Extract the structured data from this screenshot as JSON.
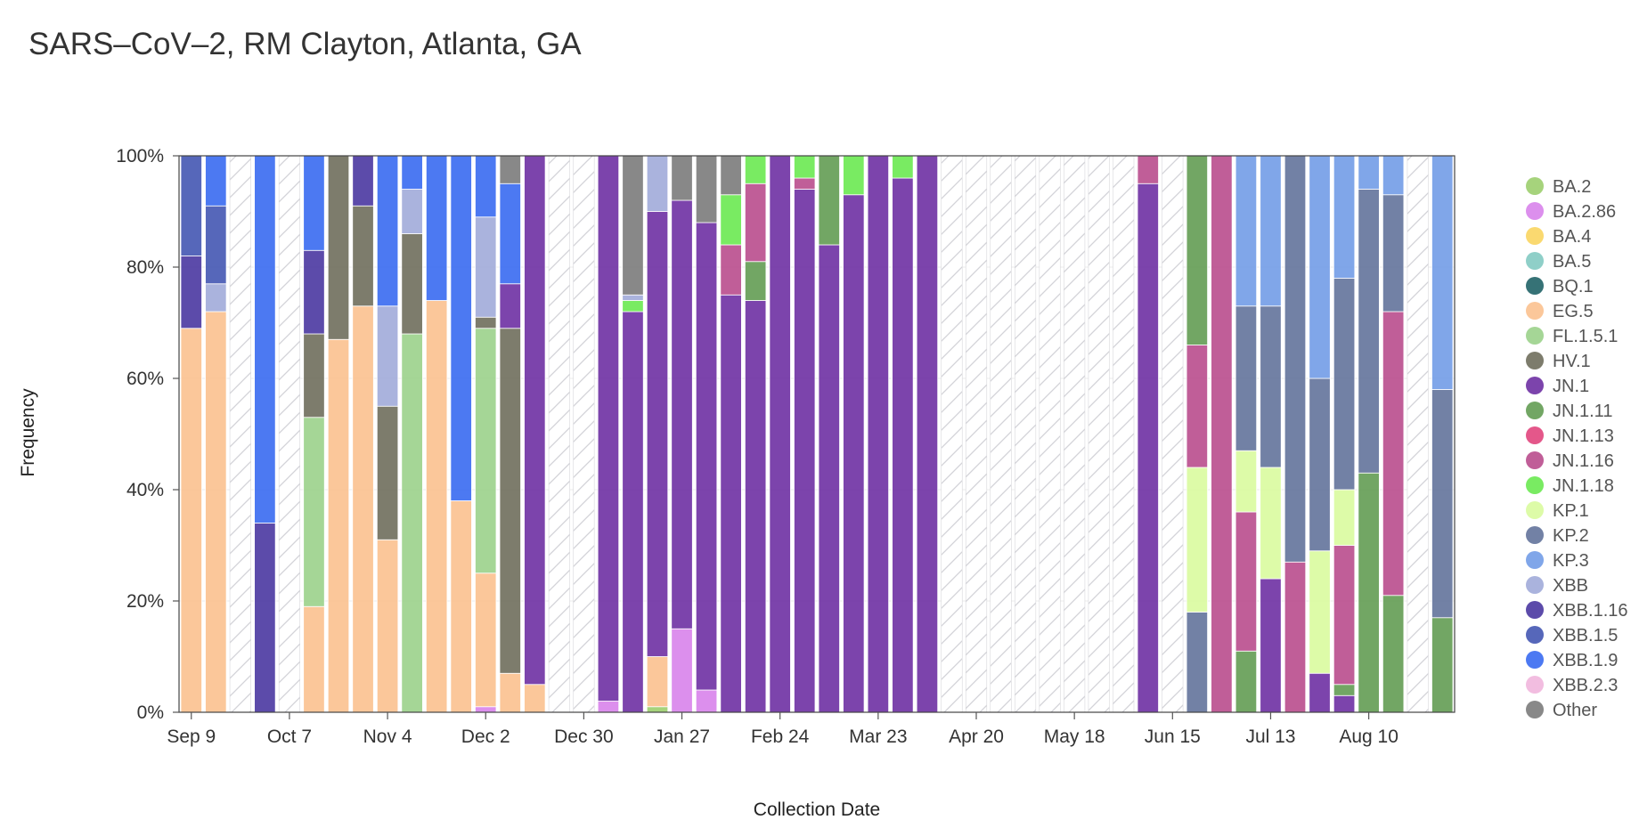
{
  "chart_data": {
    "type": "bar",
    "stacked": true,
    "title": "SARS–CoV–2, RM Clayton, Atlanta, GA",
    "xlabel": "Collection Date",
    "ylabel": "Frequency",
    "ylim": [
      0,
      100
    ],
    "y_ticks": [
      "0%",
      "20%",
      "40%",
      "60%",
      "80%",
      "100%"
    ],
    "x_tick_labels": [
      {
        "label": "Sep 9",
        "week": 0
      },
      {
        "label": "Oct 7",
        "week": 4
      },
      {
        "label": "Nov 4",
        "week": 8
      },
      {
        "label": "Dec 2",
        "week": 12
      },
      {
        "label": "Dec 30",
        "week": 16
      },
      {
        "label": "Jan 27",
        "week": 20
      },
      {
        "label": "Feb 24",
        "week": 24
      },
      {
        "label": "Mar 23",
        "week": 28
      },
      {
        "label": "Apr 20",
        "week": 32
      },
      {
        "label": "May 18",
        "week": 36
      },
      {
        "label": "Jun 15",
        "week": 40
      },
      {
        "label": "Jul 13",
        "week": 44
      },
      {
        "label": "Aug 10",
        "week": 48
      }
    ],
    "no_data_fill": "hatched",
    "legend_position": "right",
    "variants": [
      {
        "name": "BA.2",
        "color": "#9acd6a"
      },
      {
        "name": "BA.2.86",
        "color": "#d77fea"
      },
      {
        "name": "BA.4",
        "color": "#f9d45c"
      },
      {
        "name": "BA.5",
        "color": "#7fc8c0"
      },
      {
        "name": "BQ.1",
        "color": "#1a5e63"
      },
      {
        "name": "EG.5",
        "color": "#fbbf8c"
      },
      {
        "name": "FL.1.5.1",
        "color": "#98d088"
      },
      {
        "name": "HV.1",
        "color": "#6b6a58"
      },
      {
        "name": "JN.1",
        "color": "#6a2aa0"
      },
      {
        "name": "JN.1.11",
        "color": "#5e9a4e"
      },
      {
        "name": "JN.1.13",
        "color": "#e0407a"
      },
      {
        "name": "JN.1.16",
        "color": "#b7488a"
      },
      {
        "name": "JN.1.18",
        "color": "#66e84c"
      },
      {
        "name": "KP.1",
        "color": "#d8fa9c"
      },
      {
        "name": "KP.2",
        "color": "#5e6f98"
      },
      {
        "name": "KP.3",
        "color": "#6e9ae6"
      },
      {
        "name": "XBB",
        "color": "#9ea8d8"
      },
      {
        "name": "XBB.1.16",
        "color": "#46329e"
      },
      {
        "name": "XBB.1.5",
        "color": "#3f52b0"
      },
      {
        "name": "XBB.1.9",
        "color": "#3366f0"
      },
      {
        "name": "XBB.2.3",
        "color": "#f0b4dc"
      },
      {
        "name": "Other",
        "color": "#777777"
      }
    ],
    "weeks": [
      {
        "date": "Sep 9",
        "segments": [
          [
            "EG.5",
            69
          ],
          [
            "XBB.1.16",
            13
          ],
          [
            "XBB.1.5",
            18
          ]
        ]
      },
      {
        "date": "Sep 16",
        "segments": [
          [
            "EG.5",
            72
          ],
          [
            "XBB",
            5
          ],
          [
            "XBB.1.5",
            14
          ],
          [
            "XBB.1.9",
            9
          ]
        ]
      },
      {
        "date": "Sep 23",
        "segments": null
      },
      {
        "date": "Sep 30",
        "segments": [
          [
            "XBB.1.16",
            34
          ],
          [
            "XBB.1.9",
            66
          ]
        ]
      },
      {
        "date": "Oct 7",
        "segments": null
      },
      {
        "date": "Oct 14",
        "segments": [
          [
            "EG.5",
            19
          ],
          [
            "FL.1.5.1",
            34
          ],
          [
            "HV.1",
            15
          ],
          [
            "XBB.1.16",
            15
          ],
          [
            "XBB.1.9",
            17
          ]
        ]
      },
      {
        "date": "Oct 21",
        "segments": [
          [
            "EG.5",
            67
          ],
          [
            "HV.1",
            33
          ]
        ]
      },
      {
        "date": "Oct 28",
        "segments": [
          [
            "EG.5",
            73
          ],
          [
            "HV.1",
            18
          ],
          [
            "XBB.1.16",
            9
          ]
        ]
      },
      {
        "date": "Nov 4",
        "segments": [
          [
            "EG.5",
            31
          ],
          [
            "HV.1",
            24
          ],
          [
            "XBB",
            18
          ],
          [
            "XBB.1.9",
            27
          ]
        ]
      },
      {
        "date": "Nov 11",
        "segments": [
          [
            "FL.1.5.1",
            68
          ],
          [
            "HV.1",
            18
          ],
          [
            "XBB",
            8
          ],
          [
            "XBB.1.9",
            6
          ]
        ]
      },
      {
        "date": "Nov 18",
        "segments": [
          [
            "EG.5",
            74
          ],
          [
            "XBB.1.9",
            26
          ]
        ]
      },
      {
        "date": "Nov 25",
        "segments": [
          [
            "EG.5",
            38
          ],
          [
            "XBB.1.9",
            62
          ]
        ]
      },
      {
        "date": "Dec 2",
        "segments": [
          [
            "BA.2.86",
            1
          ],
          [
            "EG.5",
            24
          ],
          [
            "FL.1.5.1",
            44
          ],
          [
            "HV.1",
            2
          ],
          [
            "XBB",
            18
          ],
          [
            "XBB.1.9",
            11
          ]
        ]
      },
      {
        "date": "Dec 9",
        "segments": [
          [
            "EG.5",
            7
          ],
          [
            "HV.1",
            62
          ],
          [
            "JN.1",
            8
          ],
          [
            "XBB.1.9",
            18
          ],
          [
            "Other",
            5
          ]
        ]
      },
      {
        "date": "Dec 16",
        "segments": [
          [
            "EG.5",
            5
          ],
          [
            "JN.1",
            95
          ]
        ]
      },
      {
        "date": "Dec 23",
        "segments": null
      },
      {
        "date": "Dec 30",
        "segments": null
      },
      {
        "date": "Jan 6",
        "segments": [
          [
            "BA.2.86",
            2
          ],
          [
            "JN.1",
            98
          ]
        ]
      },
      {
        "date": "Jan 13",
        "segments": [
          [
            "JN.1",
            72
          ],
          [
            "JN.1.18",
            2
          ],
          [
            "XBB",
            1
          ],
          [
            "Other",
            25
          ]
        ]
      },
      {
        "date": "Jan 20",
        "segments": [
          [
            "BA.2",
            1
          ],
          [
            "EG.5",
            9
          ],
          [
            "JN.1",
            80
          ],
          [
            "XBB",
            10
          ]
        ]
      },
      {
        "date": "Jan 27",
        "segments": [
          [
            "BA.2.86",
            15
          ],
          [
            "JN.1",
            77
          ],
          [
            "Other",
            8
          ]
        ]
      },
      {
        "date": "Feb 3",
        "segments": [
          [
            "BA.2.86",
            4
          ],
          [
            "JN.1",
            84
          ],
          [
            "Other",
            12
          ]
        ]
      },
      {
        "date": "Feb 10",
        "segments": [
          [
            "JN.1",
            75
          ],
          [
            "JN.1.16",
            9
          ],
          [
            "JN.1.18",
            9
          ],
          [
            "Other",
            7
          ]
        ]
      },
      {
        "date": "Feb 17",
        "segments": [
          [
            "JN.1",
            74
          ],
          [
            "JN.1.11",
            7
          ],
          [
            "JN.1.16",
            14
          ],
          [
            "JN.1.18",
            5
          ]
        ]
      },
      {
        "date": "Feb 24",
        "segments": [
          [
            "JN.1",
            100
          ]
        ]
      },
      {
        "date": "Mar 2",
        "segments": [
          [
            "JN.1",
            94
          ],
          [
            "JN.1.16",
            2
          ],
          [
            "JN.1.18",
            4
          ]
        ]
      },
      {
        "date": "Mar 9",
        "segments": [
          [
            "JN.1",
            84
          ],
          [
            "JN.1.11",
            16
          ]
        ]
      },
      {
        "date": "Mar 16",
        "segments": [
          [
            "JN.1",
            93
          ],
          [
            "JN.1.18",
            7
          ]
        ]
      },
      {
        "date": "Mar 23",
        "segments": [
          [
            "JN.1",
            100
          ]
        ]
      },
      {
        "date": "Mar 30",
        "segments": [
          [
            "JN.1",
            96
          ],
          [
            "JN.1.18",
            4
          ]
        ]
      },
      {
        "date": "Apr 6",
        "segments": [
          [
            "JN.1",
            100
          ]
        ]
      },
      {
        "date": "Apr 13",
        "segments": null
      },
      {
        "date": "Apr 20",
        "segments": null
      },
      {
        "date": "Apr 27",
        "segments": null
      },
      {
        "date": "May 4",
        "segments": null
      },
      {
        "date": "May 11",
        "segments": null
      },
      {
        "date": "May 18",
        "segments": null
      },
      {
        "date": "May 25",
        "segments": null
      },
      {
        "date": "Jun 1",
        "segments": null
      },
      {
        "date": "Jun 8",
        "segments": [
          [
            "JN.1",
            95
          ],
          [
            "JN.1.16",
            5
          ]
        ]
      },
      {
        "date": "Jun 15",
        "segments": null
      },
      {
        "date": "Jun 22",
        "segments": [
          [
            "KP.2",
            18
          ],
          [
            "KP.1",
            26
          ],
          [
            "JN.1.16",
            22
          ],
          [
            "JN.1.11",
            34
          ]
        ]
      },
      {
        "date": "Jun 29",
        "segments": [
          [
            "JN.1.16",
            100
          ]
        ]
      },
      {
        "date": "Jul 6",
        "segments": [
          [
            "JN.1.11",
            11
          ],
          [
            "JN.1.16",
            25
          ],
          [
            "KP.1",
            11
          ],
          [
            "KP.2",
            26
          ],
          [
            "KP.3",
            27
          ]
        ]
      },
      {
        "date": "Jul 13",
        "segments": [
          [
            "JN.1",
            24
          ],
          [
            "KP.1",
            20
          ],
          [
            "KP.2",
            29
          ],
          [
            "KP.3",
            27
          ]
        ]
      },
      {
        "date": "Jul 20",
        "segments": [
          [
            "JN.1.16",
            27
          ],
          [
            "KP.2",
            73
          ]
        ]
      },
      {
        "date": "Jul 27",
        "segments": [
          [
            "JN.1",
            7
          ],
          [
            "KP.1",
            22
          ],
          [
            "KP.2",
            31
          ],
          [
            "KP.3",
            40
          ]
        ]
      },
      {
        "date": "Aug 3",
        "segments": [
          [
            "JN.1",
            3
          ],
          [
            "JN.1.11",
            2
          ],
          [
            "JN.1.16",
            25
          ],
          [
            "KP.1",
            10
          ],
          [
            "KP.2",
            38
          ],
          [
            "KP.3",
            22
          ]
        ]
      },
      {
        "date": "Aug 10",
        "segments": [
          [
            "JN.1.11",
            43
          ],
          [
            "KP.2",
            51
          ],
          [
            "KP.3",
            6
          ]
        ]
      },
      {
        "date": "Aug 17",
        "segments": [
          [
            "JN.1.11",
            21
          ],
          [
            "JN.1.16",
            51
          ],
          [
            "KP.2",
            21
          ],
          [
            "KP.3",
            7
          ]
        ]
      },
      {
        "date": "Aug 24",
        "segments": null
      },
      {
        "date": "Aug 31",
        "segments": [
          [
            "JN.1.11",
            17
          ],
          [
            "KP.2",
            41
          ],
          [
            "KP.3",
            42
          ]
        ]
      }
    ]
  }
}
